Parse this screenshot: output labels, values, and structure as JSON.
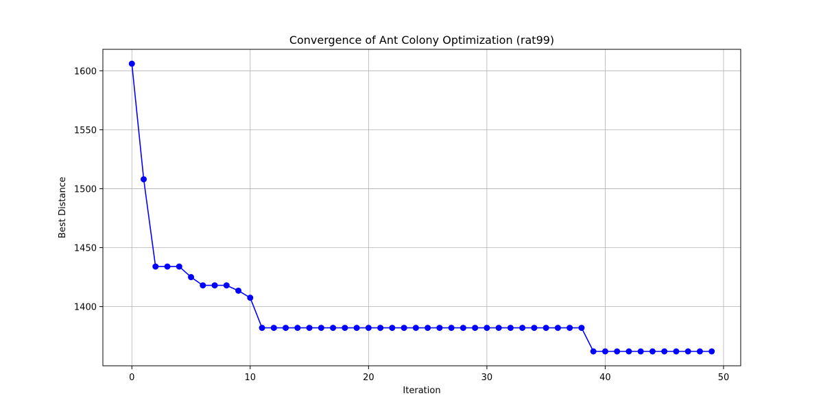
{
  "chart_data": {
    "type": "line",
    "title": "Convergence of Ant Colony Optimization (rat99)",
    "xlabel": "Iteration",
    "ylabel": "Best Distance",
    "xlim": [
      -2.45,
      51.45
    ],
    "ylim": [
      1349.8,
      1618.2
    ],
    "xticks": [
      0,
      10,
      20,
      30,
      40,
      50
    ],
    "yticks": [
      1400,
      1450,
      1500,
      1550,
      1600
    ],
    "grid": true,
    "series": [
      {
        "color": "#0000ff",
        "marker": "circle",
        "x": [
          0,
          1,
          2,
          3,
          4,
          5,
          6,
          7,
          8,
          9,
          10,
          11,
          12,
          13,
          14,
          15,
          16,
          17,
          18,
          19,
          20,
          21,
          22,
          23,
          24,
          25,
          26,
          27,
          28,
          29,
          30,
          31,
          32,
          33,
          34,
          35,
          36,
          37,
          38,
          39,
          40,
          41,
          42,
          43,
          44,
          45,
          46,
          47,
          48,
          49
        ],
        "values": [
          1606,
          1508,
          1434,
          1434,
          1434,
          1425,
          1418,
          1418,
          1418,
          1413.5,
          1407.5,
          1382,
          1382,
          1382,
          1382,
          1382,
          1382,
          1382,
          1382,
          1382,
          1382,
          1382,
          1382,
          1382,
          1382,
          1382,
          1382,
          1382,
          1382,
          1382,
          1382,
          1382,
          1382,
          1382,
          1382,
          1382,
          1382,
          1382,
          1382,
          1362,
          1362,
          1362,
          1362,
          1362,
          1362,
          1362,
          1362,
          1362,
          1362,
          1362
        ]
      }
    ]
  }
}
